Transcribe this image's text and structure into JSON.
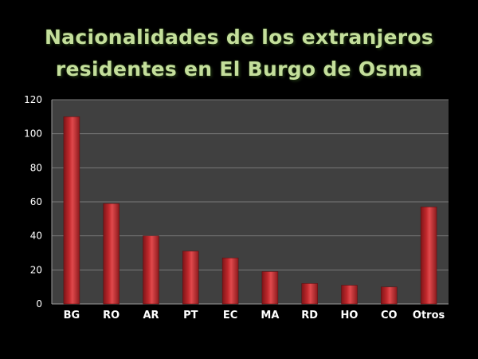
{
  "title_lines": [
    "Nacionalidades de los extranjeros",
    "residentes en El Burgo de Osma"
  ],
  "colors": {
    "background": "#000000",
    "plot_area": "#404040",
    "gridline": "#7a7a7a",
    "bar": "#c0282c",
    "title": "#c4df9b",
    "tick_text": "#ffffff"
  },
  "chart_data": {
    "type": "bar",
    "title": "Nacionalidades de los extranjeros residentes en El Burgo de Osma",
    "xlabel": "",
    "ylabel": "",
    "categories": [
      "BG",
      "RO",
      "AR",
      "PT",
      "EC",
      "MA",
      "RD",
      "HO",
      "CO",
      "Otros"
    ],
    "values": [
      110,
      59,
      40,
      31,
      27,
      19,
      12,
      11,
      10,
      57
    ],
    "ylim": [
      0,
      120
    ],
    "yticks": [
      0,
      20,
      40,
      60,
      80,
      100,
      120
    ],
    "grid": true,
    "legend": "none"
  }
}
